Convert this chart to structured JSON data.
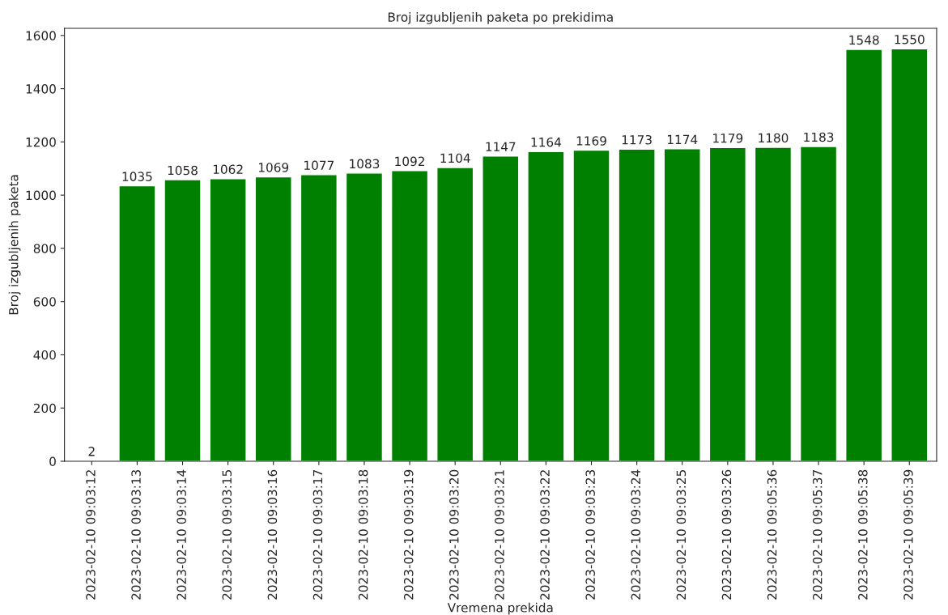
{
  "chart_data": {
    "type": "bar",
    "title": "Broj izgubljenih paketa po prekidima",
    "xlabel": "Vremena prekida",
    "ylabel": "Broj izgubljenih paketa",
    "categories": [
      "2023-02-10 09:03:12",
      "2023-02-10 09:03:13",
      "2023-02-10 09:03:14",
      "2023-02-10 09:03:15",
      "2023-02-10 09:03:16",
      "2023-02-10 09:03:17",
      "2023-02-10 09:03:18",
      "2023-02-10 09:03:19",
      "2023-02-10 09:03:20",
      "2023-02-10 09:03:21",
      "2023-02-10 09:03:22",
      "2023-02-10 09:03:23",
      "2023-02-10 09:03:24",
      "2023-02-10 09:03:25",
      "2023-02-10 09:03:26",
      "2023-02-10 09:05:36",
      "2023-02-10 09:05:37",
      "2023-02-10 09:05:38",
      "2023-02-10 09:05:39"
    ],
    "values": [
      2,
      1035,
      1058,
      1062,
      1069,
      1077,
      1083,
      1092,
      1104,
      1147,
      1164,
      1169,
      1173,
      1174,
      1179,
      1180,
      1183,
      1548,
      1550
    ],
    "color": "#008000",
    "data_labels": true,
    "ylim": [
      0,
      1627
    ],
    "yticks": [
      0,
      200,
      400,
      600,
      800,
      1000,
      1200,
      1400,
      1600
    ],
    "grid": false
  }
}
